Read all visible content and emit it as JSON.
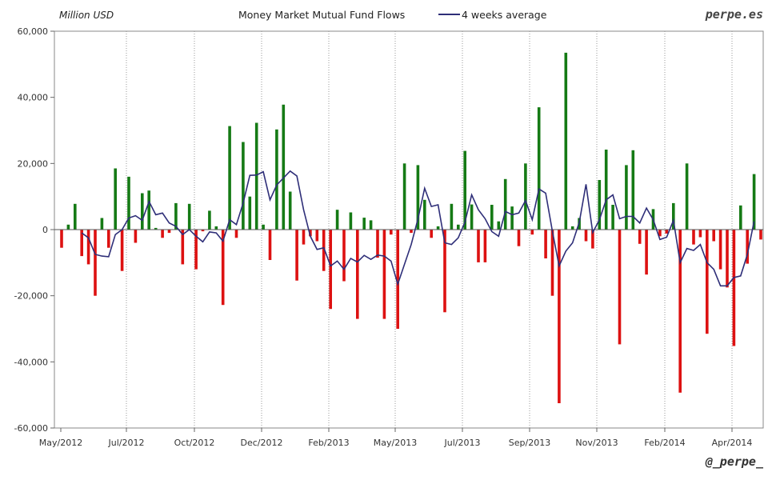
{
  "chart_data": {
    "type": "bar",
    "title": "Money Market Mutual Fund Flows",
    "unit_label": "Million USD",
    "legend": {
      "line_label": "4 weeks average",
      "placement": "top"
    },
    "brand": "perpe.es",
    "handle": "@_perpe_",
    "ylim": [
      -60000,
      60000
    ],
    "y_ticks": [
      60000,
      40000,
      20000,
      0,
      -20000,
      -40000,
      -60000
    ],
    "y_tick_labels": [
      "60,000",
      "40,000",
      "20,000",
      "0",
      "-20,000",
      "-40,000",
      "-60,000"
    ],
    "x_tick_labels": [
      "May/2012",
      "Jul/2012",
      "Oct/2012",
      "Dec/2012",
      "Feb/2013",
      "May/2013",
      "Jul/2013",
      "Sep/2013",
      "Nov/2013",
      "Feb/2014",
      "Apr/2014"
    ],
    "grid": "vertical dotted at x ticks",
    "colors": {
      "positive": "#157a15",
      "negative": "#dd1111",
      "line": "#30307a",
      "zero_line": "#555555"
    },
    "series": [
      {
        "kind": "bar",
        "values": [
          -5500,
          1500,
          7800,
          -8000,
          -10500,
          -20000,
          3500,
          -5500,
          18500,
          -12500,
          16000,
          -4000,
          11000,
          11800,
          500,
          -2500,
          -1000,
          8000,
          -10500,
          7800,
          -12000,
          -500,
          5700,
          1000,
          -22800,
          31300,
          -2500,
          26500,
          10000,
          32300,
          1500,
          -9200,
          30300,
          37800,
          11500,
          -15400,
          -4500,
          -2000,
          -3500,
          -12500,
          -24000,
          6000,
          -15600,
          5200,
          -27000,
          3600,
          2800,
          -8500,
          -27000,
          -1500,
          -30000,
          20000,
          -1000,
          19500,
          9000,
          -2500,
          1000,
          -25000,
          7800,
          1500,
          23800,
          7600,
          -9900,
          -9900,
          7500,
          2500,
          15300,
          7000,
          -5000,
          20000,
          -1500,
          37000,
          -8700,
          -20000,
          -52500,
          53500,
          1000,
          3500,
          -3500,
          -5700,
          15000,
          24200,
          7500,
          -34700,
          19500,
          24000,
          -4300,
          -13600,
          6200,
          -2000,
          -1200,
          8000,
          -49300,
          20000,
          -4500,
          -2300,
          -31500,
          -3500,
          -12000,
          -17500,
          -35200,
          7300,
          -10300,
          16800,
          -3000
        ]
      },
      {
        "kind": "line",
        "name": "4 weeks average",
        "values": [
          null,
          null,
          null,
          -1000,
          -2500,
          -7500,
          -8000,
          -8200,
          -1500,
          0,
          3500,
          4200,
          2800,
          8500,
          4500,
          5000,
          2000,
          1000,
          -1500,
          0,
          -2000,
          -3700,
          -700,
          -1000,
          -3500,
          3000,
          1500,
          8000,
          16400,
          16500,
          17500,
          9000,
          13500,
          15600,
          17700,
          16200,
          6000,
          -2000,
          -6000,
          -5500,
          -11000,
          -9500,
          -12000,
          -8700,
          -9800,
          -7800,
          -9000,
          -7700,
          -8000,
          -9500,
          -16500,
          -10500,
          -4500,
          3200,
          12500,
          7000,
          7500,
          -4000,
          -4500,
          -2500,
          2300,
          10500,
          6000,
          3300,
          -600,
          -2000,
          5500,
          4500,
          5000,
          8800,
          3000,
          12300,
          11000,
          -500,
          -11000,
          -6500,
          -4000,
          2200,
          13700,
          -900,
          3000,
          9000,
          10500,
          3300,
          4000,
          4000,
          2000,
          6500,
          3000,
          -3000,
          -2300,
          2800,
          -10000,
          -5700,
          -6300,
          -4500,
          -10000,
          -12000,
          -17000,
          -17000,
          -14500,
          -14000,
          -7500,
          2500
        ]
      }
    ]
  }
}
